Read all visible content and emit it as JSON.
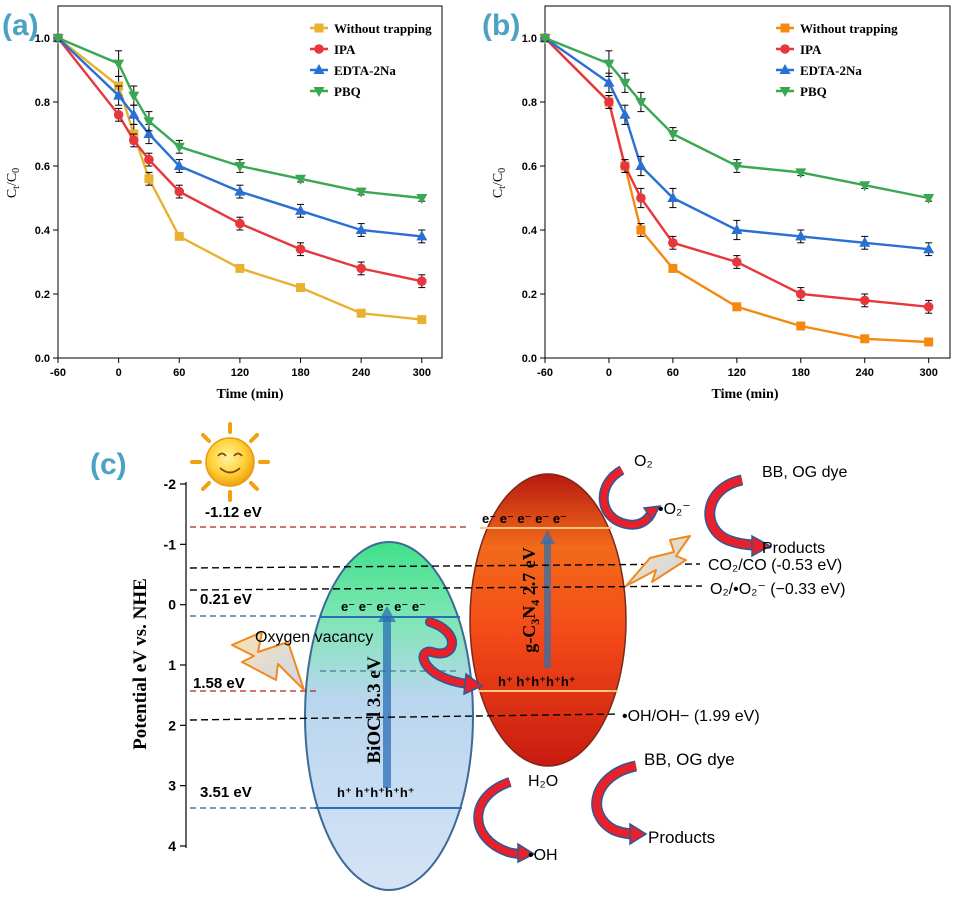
{
  "panel_labels": {
    "a": "(a)",
    "b": "(b)",
    "c": "(c)"
  },
  "colors": {
    "panel_label": "#4aa3c4",
    "without_a": "#e8b230",
    "without_b": "#f5890f",
    "ipa": "#e8373c",
    "edta": "#2a6fd4",
    "pbq": "#3aa852"
  },
  "chart_data": [
    {
      "type": "line",
      "panel": "(a)",
      "xlabel": "Time (min)",
      "ylabel": "Ct/C0",
      "xticks": [
        -60,
        0,
        60,
        120,
        180,
        240,
        300
      ],
      "yticks": [
        0.0,
        0.2,
        0.4,
        0.6,
        0.8,
        1.0
      ],
      "xlim": [
        -60,
        320
      ],
      "ylim": [
        0,
        1.1
      ],
      "legend_position": "top-right",
      "series": [
        {
          "name": "Without trapping",
          "x": [
            -60,
            0,
            15,
            30,
            60,
            120,
            180,
            240,
            300
          ],
          "y": [
            1.0,
            0.85,
            0.7,
            0.56,
            0.38,
            0.28,
            0.22,
            0.14,
            0.12
          ],
          "err": [
            0.01,
            0.03,
            0.03,
            0.02,
            0.01,
            0.01,
            0.01,
            0.01,
            0.01
          ]
        },
        {
          "name": "IPA",
          "x": [
            -60,
            0,
            15,
            30,
            60,
            120,
            180,
            240,
            300
          ],
          "y": [
            1.0,
            0.76,
            0.68,
            0.62,
            0.52,
            0.42,
            0.34,
            0.28,
            0.24
          ],
          "err": [
            0.01,
            0.02,
            0.02,
            0.02,
            0.02,
            0.02,
            0.02,
            0.02,
            0.02
          ]
        },
        {
          "name": "EDTA-2Na",
          "x": [
            -60,
            0,
            15,
            30,
            60,
            120,
            180,
            240,
            300
          ],
          "y": [
            1.0,
            0.82,
            0.76,
            0.7,
            0.6,
            0.52,
            0.46,
            0.4,
            0.38
          ],
          "err": [
            0.01,
            0.03,
            0.03,
            0.03,
            0.02,
            0.02,
            0.02,
            0.02,
            0.02
          ]
        },
        {
          "name": "PBQ",
          "x": [
            -60,
            0,
            15,
            30,
            60,
            120,
            180,
            240,
            300
          ],
          "y": [
            1.0,
            0.92,
            0.82,
            0.74,
            0.66,
            0.6,
            0.56,
            0.52,
            0.5
          ],
          "err": [
            0.01,
            0.04,
            0.03,
            0.03,
            0.02,
            0.02,
            0.01,
            0.01,
            0.01
          ]
        }
      ]
    },
    {
      "type": "line",
      "panel": "(b)",
      "xlabel": "Time (min)",
      "ylabel": "Ct/C0",
      "xticks": [
        -60,
        0,
        60,
        120,
        180,
        240,
        300
      ],
      "yticks": [
        0.0,
        0.2,
        0.4,
        0.6,
        0.8,
        1.0
      ],
      "xlim": [
        -60,
        320
      ],
      "ylim": [
        0,
        1.1
      ],
      "legend_position": "top-right",
      "series": [
        {
          "name": "Without trapping",
          "x": [
            -60,
            0,
            15,
            30,
            60,
            120,
            180,
            240,
            300
          ],
          "y": [
            1.0,
            0.8,
            0.6,
            0.4,
            0.28,
            0.16,
            0.1,
            0.06,
            0.05
          ],
          "err": [
            0.01,
            0.02,
            0.02,
            0.02,
            0.01,
            0.01,
            0.01,
            0.01,
            0.01
          ]
        },
        {
          "name": "IPA",
          "x": [
            -60,
            0,
            15,
            30,
            60,
            120,
            180,
            240,
            300
          ],
          "y": [
            1.0,
            0.8,
            0.6,
            0.5,
            0.36,
            0.3,
            0.2,
            0.18,
            0.16
          ],
          "err": [
            0.01,
            0.02,
            0.02,
            0.03,
            0.02,
            0.02,
            0.02,
            0.02,
            0.02
          ]
        },
        {
          "name": "EDTA-2Na",
          "x": [
            -60,
            0,
            15,
            30,
            60,
            120,
            180,
            240,
            300
          ],
          "y": [
            1.0,
            0.86,
            0.76,
            0.6,
            0.5,
            0.4,
            0.38,
            0.36,
            0.34
          ],
          "err": [
            0.01,
            0.03,
            0.03,
            0.03,
            0.03,
            0.03,
            0.02,
            0.02,
            0.02
          ]
        },
        {
          "name": "PBQ",
          "x": [
            -60,
            0,
            15,
            30,
            60,
            120,
            180,
            240,
            300
          ],
          "y": [
            1.0,
            0.92,
            0.86,
            0.8,
            0.7,
            0.6,
            0.58,
            0.54,
            0.5
          ],
          "err": [
            0.01,
            0.04,
            0.03,
            0.03,
            0.02,
            0.02,
            0.01,
            0.01,
            0.01
          ]
        }
      ]
    }
  ],
  "diagram": {
    "ylabel": "Potential eV vs. NHE",
    "yticks": [
      -2,
      -1,
      0,
      1,
      2,
      3,
      4
    ],
    "level_labels": {
      "cb_gcn": "-1.12 eV",
      "cb_bio": "0.21 eV",
      "vb_gcn": "1.58 eV",
      "vb_bio": "3.51 eV"
    },
    "bioci": {
      "label": "BiOCl 3.3 eV",
      "electrons": "e⁻ e⁻ e⁻ e⁻ e⁻",
      "holes": "h⁺ h⁺h⁺h⁺h⁺"
    },
    "gcn": {
      "label": "g-C₃N₄ 2.7 eV",
      "electrons": "e⁻ e⁻ e⁻ e⁻ e⁻",
      "holes": "h⁺ h⁺h⁺h⁺h⁺"
    },
    "oxygen_vacancy": "Oxygen vacancy",
    "redox": {
      "co2": "CO₂/CO (-0.53 eV)",
      "o2": "O₂/•O₂⁻ (−0.33 eV)",
      "oh": "•OH/OH− (1.99 eV)"
    },
    "species": {
      "o2": "O₂",
      "o2rad": "•O₂⁻",
      "dye_top": "BB, OG dye",
      "products_top": "Products",
      "h2o": "H₂O",
      "ohrad": "•OH",
      "dye_bottom": "BB, OG dye",
      "products_bottom": "Products"
    },
    "icons": [
      "sun-icon",
      "lightning-icon"
    ]
  }
}
